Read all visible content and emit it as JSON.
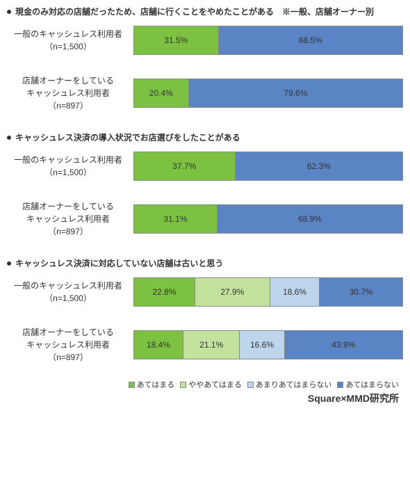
{
  "colors": {
    "green": "#7cc141",
    "lightgreen": "#c3e29d",
    "lightblue": "#bed6eb",
    "blue": "#5a84c4",
    "border": "#888888",
    "text": "#333333",
    "background": "#ffffff"
  },
  "panels": [
    {
      "title": "現金のみ対応の店舗だったため、店舗に行くことをやめたことがある　※一般、店舗オーナー別",
      "rows": [
        {
          "label_lines": [
            "一般のキャッシュレス利用者",
            "（n=1,500）"
          ],
          "segments": [
            {
              "value": 31.5,
              "label": "31.5%",
              "color": "green"
            },
            {
              "value": 68.5,
              "label": "68.5%",
              "color": "blue"
            }
          ]
        },
        {
          "label_lines": [
            "店舗オーナーをしている",
            "キャッシュレス利用者",
            "（n=897）"
          ],
          "segments": [
            {
              "value": 20.4,
              "label": "20.4%",
              "color": "green"
            },
            {
              "value": 79.6,
              "label": "79.6%",
              "color": "blue"
            }
          ]
        }
      ]
    },
    {
      "title": "キャッシュレス決済の導入状況でお店選びをしたことがある",
      "rows": [
        {
          "label_lines": [
            "一般のキャッシュレス利用者",
            "（n=1,500）"
          ],
          "segments": [
            {
              "value": 37.7,
              "label": "37.7%",
              "color": "green"
            },
            {
              "value": 62.3,
              "label": "62.3%",
              "color": "blue"
            }
          ]
        },
        {
          "label_lines": [
            "店舗オーナーをしている",
            "キャッシュレス利用者",
            "（n=897）"
          ],
          "segments": [
            {
              "value": 31.1,
              "label": "31.1%",
              "color": "green"
            },
            {
              "value": 68.9,
              "label": "68.9%",
              "color": "blue"
            }
          ]
        }
      ]
    },
    {
      "title": "キャッシュレス決済に対応していない店舗は古いと思う",
      "rows": [
        {
          "label_lines": [
            "一般のキャッシュレス利用者",
            "（n=1,500）"
          ],
          "segments": [
            {
              "value": 22.8,
              "label": "22.8%",
              "color": "green"
            },
            {
              "value": 27.9,
              "label": "27.9%",
              "color": "lightgreen"
            },
            {
              "value": 18.6,
              "label": "18.6%",
              "color": "lightblue"
            },
            {
              "value": 30.7,
              "label": "30.7%",
              "color": "blue"
            }
          ]
        },
        {
          "label_lines": [
            "店舗オーナーをしている",
            "キャッシュレス利用者",
            "（n=897）"
          ],
          "segments": [
            {
              "value": 18.4,
              "label": "18.4%",
              "color": "green"
            },
            {
              "value": 21.1,
              "label": "21.1%",
              "color": "lightgreen"
            },
            {
              "value": 16.6,
              "label": "16.6%",
              "color": "lightblue"
            },
            {
              "value": 43.9,
              "label": "43.9%",
              "color": "blue"
            }
          ]
        }
      ]
    }
  ],
  "legend": [
    {
      "label": "あてはまる",
      "color": "green"
    },
    {
      "label": "ややあてはまる",
      "color": "lightgreen"
    },
    {
      "label": "あまりあてはまらない",
      "color": "lightblue"
    },
    {
      "label": "あてはまらない",
      "color": "blue"
    }
  ],
  "credit": "Square×MMD研究所"
}
